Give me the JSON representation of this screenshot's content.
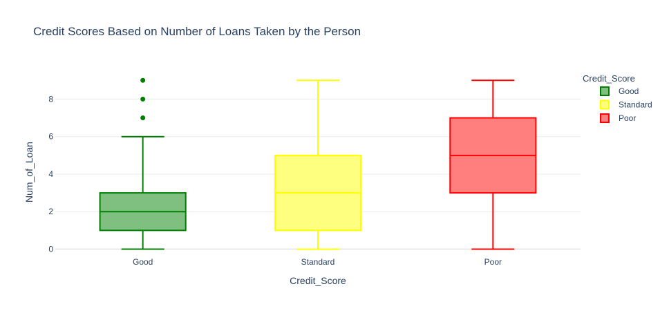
{
  "chart_data": {
    "type": "box",
    "title": "Credit Scores Based on Number of Loans Taken by the Person",
    "xlabel": "Credit_Score",
    "ylabel": "Num_of_Loan",
    "categories": [
      "Good",
      "Standard",
      "Poor"
    ],
    "yticks": [
      0,
      2,
      4,
      6,
      8
    ],
    "ylim": [
      -0.35,
      9.6
    ],
    "grid": true,
    "legend": {
      "title": "Credit_Score",
      "placement": "top-right"
    },
    "series": [
      {
        "name": "Good",
        "category": "Good",
        "color": "#008000",
        "fill": "#7fbf7f",
        "min": 0,
        "q1": 1,
        "median": 2,
        "q3": 3,
        "max": 6,
        "outliers": [
          7,
          8,
          9
        ]
      },
      {
        "name": "Standard",
        "category": "Standard",
        "color": "#ffff00",
        "fill": "#ffff7f",
        "min": 0,
        "q1": 1,
        "median": 3,
        "q3": 5,
        "max": 9,
        "outliers": []
      },
      {
        "name": "Poor",
        "category": "Poor",
        "color": "#ff0000",
        "fill": "#ff7f7f",
        "min": 0,
        "q1": 3,
        "median": 5,
        "q3": 7,
        "max": 9,
        "outliers": []
      }
    ]
  }
}
